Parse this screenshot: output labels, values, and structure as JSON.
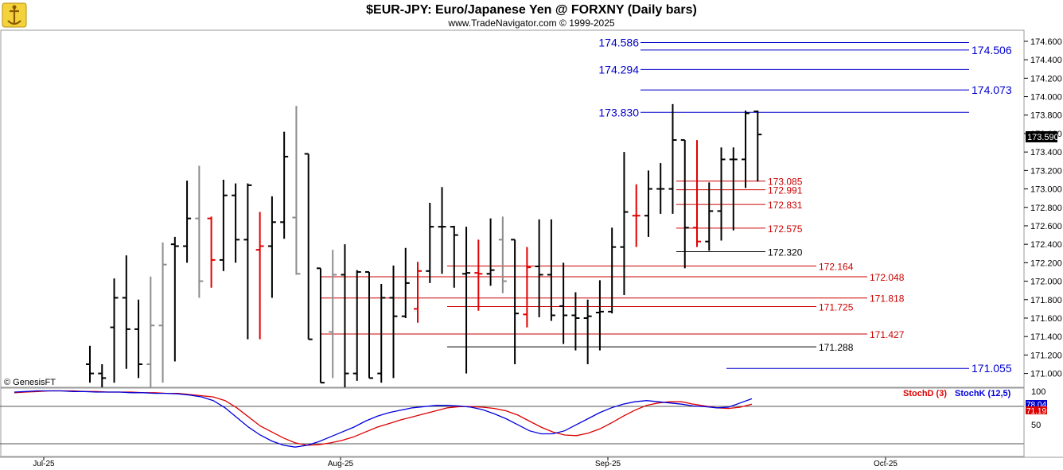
{
  "header": {
    "title": "$EUR-JPY:  Euro/Japanese Yen @ FORXNY  (Daily bars)",
    "subtitle": "www.TradeNavigator.com © 1999-2025"
  },
  "watermark": "© GenesisFT",
  "colors": {
    "up_bar": "#000000",
    "gray_bar": "#8c8c8c",
    "red_bar": "#e00000",
    "blue_level": "#0000cc",
    "red_level": "#cc0000",
    "black_level": "#000000",
    "stoch_d": "#dd0000",
    "stoch_k": "#0000dd",
    "last_price_bg": "#000000"
  },
  "chart_data": [
    {
      "type": "ohlc",
      "title": "$EUR-JPY:  Euro/Japanese Yen @ FORXNY  (Daily bars)",
      "ylim": [
        170.85,
        174.72
      ],
      "y_ticks": [
        "174.600",
        "174.400",
        "174.200",
        "174.000",
        "173.800",
        "173.600",
        "173.400",
        "173.200",
        "173.000",
        "172.800",
        "172.600",
        "172.400",
        "172.200",
        "172.000",
        "171.800",
        "171.600",
        "171.400",
        "171.200",
        "171.000"
      ],
      "x_ticks": [
        "Jul-25",
        "Aug-25",
        "Sep-25",
        "Oct-25"
      ],
      "last_price": "173.590",
      "bars": [
        {
          "o": 171.1,
          "h": 171.3,
          "l": 170.9,
          "c": 171.0,
          "color": "black"
        },
        {
          "o": 171.0,
          "h": 171.1,
          "l": 170.85,
          "c": 170.95,
          "color": "black"
        },
        {
          "o": 171.5,
          "h": 172.03,
          "l": 170.9,
          "c": 171.82,
          "color": "black"
        },
        {
          "o": 171.82,
          "h": 172.28,
          "l": 171.05,
          "c": 171.48,
          "color": "black"
        },
        {
          "o": 171.48,
          "h": 171.8,
          "l": 170.95,
          "c": 171.1,
          "color": "black"
        },
        {
          "o": 171.1,
          "h": 172.05,
          "l": 170.85,
          "c": 171.52,
          "color": "gray"
        },
        {
          "o": 171.52,
          "h": 172.42,
          "l": 170.9,
          "c": 172.18,
          "color": "gray"
        },
        {
          "o": 172.4,
          "h": 172.48,
          "l": 171.13,
          "c": 172.38,
          "color": "black"
        },
        {
          "o": 172.38,
          "h": 173.09,
          "l": 172.2,
          "c": 172.68,
          "color": "black"
        },
        {
          "o": 172.68,
          "h": 173.25,
          "l": 171.82,
          "c": 172.0,
          "color": "gray"
        },
        {
          "o": 172.68,
          "h": 172.7,
          "l": 171.93,
          "c": 172.23,
          "color": "red"
        },
        {
          "o": 172.23,
          "h": 173.1,
          "l": 172.11,
          "c": 172.93,
          "color": "black"
        },
        {
          "o": 172.93,
          "h": 173.06,
          "l": 172.2,
          "c": 172.45,
          "color": "black"
        },
        {
          "o": 172.45,
          "h": 173.06,
          "l": 171.37,
          "c": 173.04,
          "color": "black"
        },
        {
          "o": 172.34,
          "h": 172.75,
          "l": 171.37,
          "c": 172.38,
          "color": "red"
        },
        {
          "o": 172.38,
          "h": 172.92,
          "l": 171.82,
          "c": 172.64,
          "color": "black"
        },
        {
          "o": 172.64,
          "h": 173.62,
          "l": 172.46,
          "c": 173.35,
          "color": "black"
        },
        {
          "o": 172.69,
          "h": 173.9,
          "l": 172.07,
          "c": 172.08,
          "color": "gray"
        },
        {
          "o": 173.38,
          "h": 173.38,
          "l": 171.37,
          "c": 171.37,
          "color": "black"
        },
        {
          "o": 172.14,
          "h": 172.14,
          "l": 170.9,
          "c": 170.9,
          "color": "black"
        },
        {
          "o": 171.45,
          "h": 172.34,
          "l": 170.95,
          "c": 172.07,
          "color": "gray"
        },
        {
          "o": 172.07,
          "h": 172.4,
          "l": 170.85,
          "c": 171.0,
          "color": "black"
        },
        {
          "o": 171.0,
          "h": 172.12,
          "l": 170.92,
          "c": 172.1,
          "color": "black"
        },
        {
          "o": 172.1,
          "h": 172.1,
          "l": 170.95,
          "c": 170.95,
          "color": "black"
        },
        {
          "o": 171.0,
          "h": 171.97,
          "l": 170.9,
          "c": 171.82,
          "color": "black"
        },
        {
          "o": 171.82,
          "h": 172.17,
          "l": 170.95,
          "c": 171.62,
          "color": "black"
        },
        {
          "o": 171.62,
          "h": 172.36,
          "l": 171.6,
          "c": 171.98,
          "color": "black"
        },
        {
          "o": 171.7,
          "h": 172.21,
          "l": 171.55,
          "c": 172.11,
          "color": "red"
        },
        {
          "o": 172.11,
          "h": 172.85,
          "l": 171.98,
          "c": 172.59,
          "color": "black"
        },
        {
          "o": 172.59,
          "h": 173.02,
          "l": 172.08,
          "c": 172.59,
          "color": "black"
        },
        {
          "o": 172.59,
          "h": 172.6,
          "l": 171.93,
          "c": 172.5,
          "color": "black"
        },
        {
          "o": 172.08,
          "h": 172.59,
          "l": 171.0,
          "c": 172.09,
          "color": "black"
        },
        {
          "o": 172.09,
          "h": 172.45,
          "l": 171.68,
          "c": 172.08,
          "color": "red"
        },
        {
          "o": 172.08,
          "h": 172.68,
          "l": 171.95,
          "c": 172.12,
          "color": "black"
        },
        {
          "o": 172.45,
          "h": 172.7,
          "l": 171.87,
          "c": 172.0,
          "color": "gray"
        },
        {
          "o": 172.45,
          "h": 172.45,
          "l": 171.1,
          "c": 171.65,
          "color": "black"
        },
        {
          "o": 171.64,
          "h": 172.37,
          "l": 171.5,
          "c": 172.15,
          "color": "red"
        },
        {
          "o": 172.16,
          "h": 172.67,
          "l": 171.61,
          "c": 172.07,
          "color": "black"
        },
        {
          "o": 172.07,
          "h": 172.67,
          "l": 171.57,
          "c": 171.63,
          "color": "black"
        },
        {
          "o": 171.73,
          "h": 172.2,
          "l": 171.32,
          "c": 171.63,
          "color": "black"
        },
        {
          "o": 171.63,
          "h": 171.88,
          "l": 171.25,
          "c": 171.6,
          "color": "black"
        },
        {
          "o": 171.6,
          "h": 171.8,
          "l": 171.1,
          "c": 171.62,
          "color": "black"
        },
        {
          "o": 171.66,
          "h": 172.01,
          "l": 171.25,
          "c": 171.67,
          "color": "black"
        },
        {
          "o": 171.67,
          "h": 172.58,
          "l": 171.65,
          "c": 172.37,
          "color": "black"
        },
        {
          "o": 172.37,
          "h": 173.4,
          "l": 171.85,
          "c": 172.75,
          "color": "black"
        },
        {
          "o": 172.71,
          "h": 173.05,
          "l": 172.37,
          "c": 172.71,
          "color": "red"
        },
        {
          "o": 172.71,
          "h": 173.2,
          "l": 172.48,
          "c": 173.0,
          "color": "black"
        },
        {
          "o": 173.0,
          "h": 173.28,
          "l": 172.73,
          "c": 173.0,
          "color": "black"
        },
        {
          "o": 173.0,
          "h": 173.92,
          "l": 172.73,
          "c": 173.53,
          "color": "black"
        },
        {
          "o": 173.53,
          "h": 173.53,
          "l": 172.14,
          "c": 172.58,
          "color": "black"
        },
        {
          "o": 172.58,
          "h": 173.53,
          "l": 172.37,
          "c": 172.43,
          "color": "red"
        },
        {
          "o": 172.43,
          "h": 173.07,
          "l": 172.33,
          "c": 172.76,
          "color": "black"
        },
        {
          "o": 172.76,
          "h": 173.45,
          "l": 172.44,
          "c": 173.32,
          "color": "black"
        },
        {
          "o": 173.32,
          "h": 173.45,
          "l": 172.55,
          "c": 173.32,
          "color": "black"
        },
        {
          "o": 173.32,
          "h": 173.85,
          "l": 173.01,
          "c": 173.82,
          "color": "black"
        },
        {
          "o": 173.84,
          "h": 173.85,
          "l": 173.08,
          "c": 173.59,
          "color": "black"
        }
      ],
      "levels": [
        {
          "label": "174.586",
          "value": 174.586,
          "color": "blue",
          "label_side": "left"
        },
        {
          "label": "174.506",
          "value": 174.506,
          "color": "blue",
          "label_side": "right"
        },
        {
          "label": "174.294",
          "value": 174.294,
          "color": "blue",
          "label_side": "left"
        },
        {
          "label": "174.073",
          "value": 174.073,
          "color": "blue",
          "label_side": "right"
        },
        {
          "label": "173.830",
          "value": 173.83,
          "color": "blue",
          "label_side": "left"
        },
        {
          "label": "173.085",
          "value": 173.085,
          "color": "red",
          "label_side": "mid"
        },
        {
          "label": "172.991",
          "value": 172.991,
          "color": "red",
          "label_side": "mid"
        },
        {
          "label": "172.831",
          "value": 172.831,
          "color": "red",
          "label_side": "mid"
        },
        {
          "label": "172.575",
          "value": 172.575,
          "color": "red",
          "label_side": "mid"
        },
        {
          "label": "172.320",
          "value": 172.32,
          "color": "black",
          "label_side": "mid"
        },
        {
          "label": "172.164",
          "value": 172.164,
          "color": "red",
          "label_side": "mid"
        },
        {
          "label": "172.048",
          "value": 172.048,
          "color": "red",
          "label_side": "right"
        },
        {
          "label": "171.818",
          "value": 171.818,
          "color": "red",
          "label_side": "right"
        },
        {
          "label": "171.725",
          "value": 171.725,
          "color": "red",
          "label_side": "mid"
        },
        {
          "label": "171.427",
          "value": 171.427,
          "color": "red",
          "label_side": "right"
        },
        {
          "label": "171.288",
          "value": 171.288,
          "color": "black",
          "label_side": "mid"
        },
        {
          "label": "171.055",
          "value": 171.055,
          "color": "blue",
          "label_side": "right"
        }
      ]
    },
    {
      "type": "line",
      "ylim": [
        0,
        100
      ],
      "y_ticks": [
        "100",
        "50"
      ],
      "legend": [
        "StochD (3)",
        "StochK (12,5)"
      ],
      "readouts": [
        "78.04",
        "71.19"
      ],
      "series": [
        {
          "name": "StochD (3)",
          "values": [
            95,
            96,
            97,
            98,
            98,
            98,
            97,
            97,
            96,
            96,
            96,
            95,
            95,
            94,
            94,
            92,
            90,
            88,
            82,
            70,
            55,
            40,
            30,
            20,
            12,
            8,
            9,
            12,
            16,
            22,
            30,
            38,
            44,
            50,
            55,
            60,
            65,
            70,
            72,
            72,
            71,
            69,
            65,
            58,
            48,
            38,
            30,
            25,
            24,
            28,
            35,
            45,
            56,
            66,
            74,
            78,
            80,
            80,
            76,
            73,
            70,
            69,
            71,
            76
          ]
        },
        {
          "name": "StochK (12,5)",
          "values": [
            96,
            97,
            98,
            98,
            98,
            97,
            97,
            96,
            96,
            96,
            95,
            95,
            94,
            94,
            93,
            91,
            88,
            82,
            70,
            54,
            38,
            25,
            15,
            8,
            5,
            8,
            14,
            22,
            30,
            38,
            48,
            56,
            62,
            66,
            70,
            72,
            74,
            74,
            73,
            71,
            67,
            60,
            52,
            42,
            32,
            27,
            27,
            32,
            42,
            52,
            62,
            70,
            76,
            80,
            82,
            80,
            78,
            76,
            73,
            72,
            70,
            71,
            78,
            85
          ]
        }
      ]
    }
  ]
}
